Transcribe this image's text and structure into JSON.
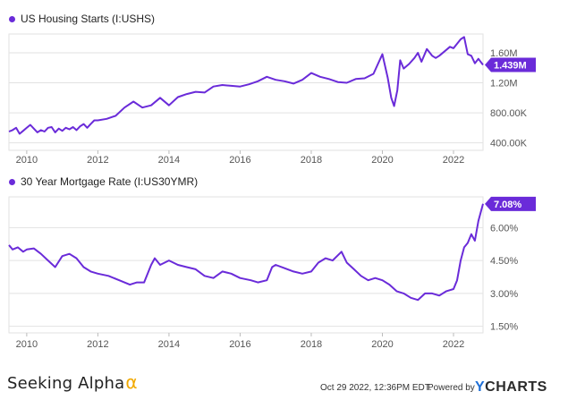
{
  "footer": {
    "brand": "Seeking Alpha",
    "brand_symbol": "α",
    "timestamp": "Oct 29 2022, 12:36PM EDT.",
    "powered_by": "Powered by",
    "ycharts_y": "Y",
    "ycharts_rest": "CHARTS"
  },
  "colors": {
    "series": "#6a2bd9",
    "badge": "#6a2bd9",
    "grid": "#e2e2e2",
    "axis_text": "#555555"
  },
  "chart_data": [
    {
      "type": "line",
      "title": "US Housing Starts (I:USHS)",
      "x_ticks": [
        "2010",
        "2012",
        "2014",
        "2016",
        "2018",
        "2020",
        "2022"
      ],
      "y_ticks": [
        "1.60M",
        "1.20M",
        "800.00K",
        "400.00K"
      ],
      "y_tick_values": [
        1600000,
        1200000,
        800000,
        400000
      ],
      "ylim": [
        300000,
        1850000
      ],
      "xlim": [
        2009.5,
        2022.83
      ],
      "last_value_label": "1.439M",
      "legend_position": "top-left",
      "grid": "horizontal",
      "series": [
        {
          "x": [
            2009.5,
            2009.6,
            2009.7,
            2009.8,
            2009.9,
            2010.0,
            2010.1,
            2010.2,
            2010.3,
            2010.4,
            2010.5,
            2010.6,
            2010.7,
            2010.8,
            2010.9,
            2011.0,
            2011.1,
            2011.2,
            2011.3,
            2011.4,
            2011.5,
            2011.6,
            2011.7,
            2011.8,
            2011.9,
            2012.0,
            2012.25,
            2012.5,
            2012.75,
            2013.0,
            2013.25,
            2013.5,
            2013.75,
            2014.0,
            2014.25,
            2014.5,
            2014.75,
            2015.0,
            2015.25,
            2015.5,
            2015.75,
            2016.0,
            2016.25,
            2016.5,
            2016.75,
            2017.0,
            2017.25,
            2017.5,
            2017.75,
            2018.0,
            2018.25,
            2018.5,
            2018.75,
            2019.0,
            2019.25,
            2019.5,
            2019.75,
            2020.0,
            2020.15,
            2020.25,
            2020.33,
            2020.42,
            2020.5,
            2020.6,
            2020.75,
            2020.9,
            2021.0,
            2021.1,
            2021.25,
            2021.4,
            2021.5,
            2021.6,
            2021.75,
            2021.9,
            2022.0,
            2022.1,
            2022.2,
            2022.3,
            2022.4,
            2022.5,
            2022.6,
            2022.7,
            2022.83
          ],
          "values": [
            550000,
            570000,
            600000,
            520000,
            560000,
            600000,
            640000,
            590000,
            540000,
            570000,
            550000,
            600000,
            610000,
            540000,
            590000,
            560000,
            600000,
            580000,
            610000,
            570000,
            620000,
            650000,
            600000,
            650000,
            700000,
            700000,
            720000,
            760000,
            870000,
            950000,
            870000,
            900000,
            1000000,
            900000,
            1010000,
            1050000,
            1080000,
            1070000,
            1150000,
            1170000,
            1160000,
            1150000,
            1180000,
            1220000,
            1280000,
            1240000,
            1220000,
            1190000,
            1240000,
            1330000,
            1280000,
            1250000,
            1210000,
            1200000,
            1250000,
            1260000,
            1320000,
            1580000,
            1270000,
            1000000,
            890000,
            1100000,
            1500000,
            1390000,
            1450000,
            1530000,
            1600000,
            1480000,
            1650000,
            1560000,
            1530000,
            1560000,
            1620000,
            1680000,
            1660000,
            1720000,
            1780000,
            1810000,
            1580000,
            1560000,
            1460000,
            1520000,
            1439000
          ]
        }
      ]
    },
    {
      "type": "line",
      "title": "30 Year Mortgage Rate (I:US30YMR)",
      "x_ticks": [
        "2010",
        "2012",
        "2014",
        "2016",
        "2018",
        "2020",
        "2022"
      ],
      "y_ticks": [
        "6.00%",
        "4.50%",
        "3.00%",
        "1.50%"
      ],
      "y_tick_values": [
        6.0,
        4.5,
        3.0,
        1.5
      ],
      "ylim": [
        1.2,
        7.4
      ],
      "xlim": [
        2009.5,
        2022.83
      ],
      "last_value_label": "7.08%",
      "legend_position": "top-left",
      "grid": "horizontal",
      "series": [
        {
          "x": [
            2009.5,
            2009.6,
            2009.75,
            2009.9,
            2010.0,
            2010.2,
            2010.4,
            2010.6,
            2010.8,
            2011.0,
            2011.2,
            2011.4,
            2011.6,
            2011.8,
            2012.0,
            2012.3,
            2012.6,
            2012.9,
            2013.1,
            2013.3,
            2013.5,
            2013.6,
            2013.75,
            2014.0,
            2014.25,
            2014.5,
            2014.75,
            2015.0,
            2015.25,
            2015.5,
            2015.75,
            2016.0,
            2016.3,
            2016.5,
            2016.75,
            2016.9,
            2017.0,
            2017.25,
            2017.5,
            2017.75,
            2018.0,
            2018.2,
            2018.4,
            2018.6,
            2018.85,
            2019.0,
            2019.2,
            2019.4,
            2019.6,
            2019.8,
            2020.0,
            2020.2,
            2020.4,
            2020.6,
            2020.8,
            2021.0,
            2021.2,
            2021.4,
            2021.6,
            2021.8,
            2022.0,
            2022.1,
            2022.2,
            2022.3,
            2022.4,
            2022.5,
            2022.6,
            2022.7,
            2022.83
          ],
          "values": [
            5.2,
            5.0,
            5.1,
            4.9,
            5.0,
            5.05,
            4.8,
            4.5,
            4.2,
            4.7,
            4.8,
            4.6,
            4.2,
            4.0,
            3.9,
            3.8,
            3.6,
            3.4,
            3.5,
            3.5,
            4.3,
            4.6,
            4.3,
            4.5,
            4.3,
            4.2,
            4.1,
            3.8,
            3.7,
            4.0,
            3.9,
            3.7,
            3.6,
            3.5,
            3.6,
            4.2,
            4.3,
            4.15,
            4.0,
            3.9,
            4.0,
            4.4,
            4.6,
            4.5,
            4.9,
            4.4,
            4.1,
            3.8,
            3.6,
            3.7,
            3.6,
            3.4,
            3.1,
            3.0,
            2.8,
            2.7,
            3.0,
            3.0,
            2.9,
            3.1,
            3.2,
            3.6,
            4.5,
            5.1,
            5.3,
            5.7,
            5.4,
            6.3,
            7.08
          ]
        }
      ]
    }
  ]
}
